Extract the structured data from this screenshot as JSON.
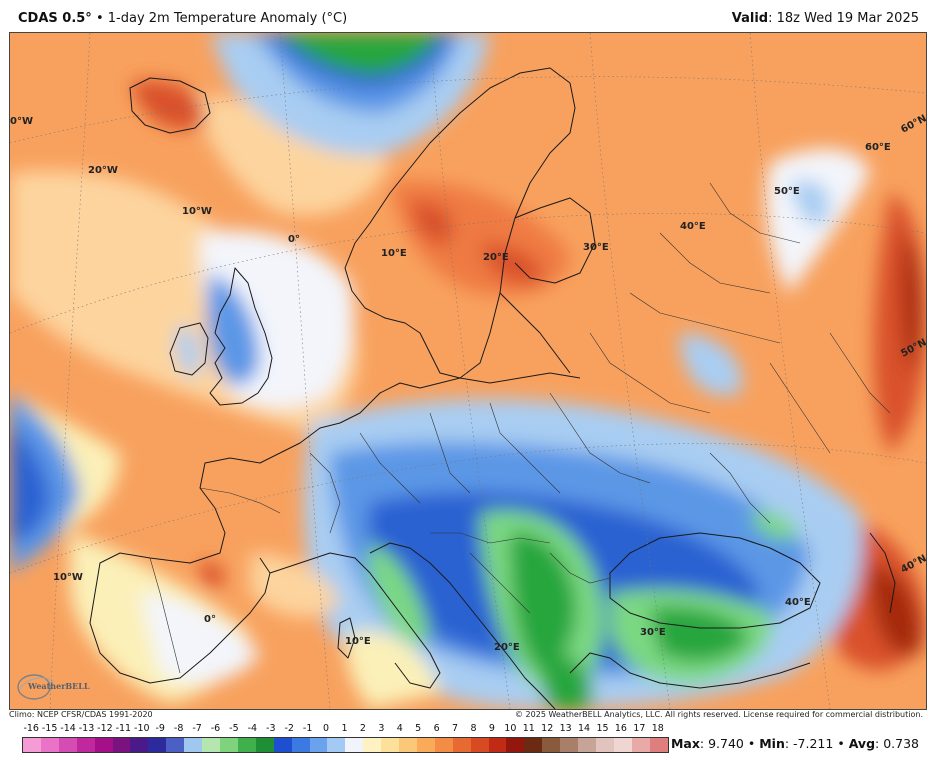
{
  "header": {
    "model": "CDAS 0.5°",
    "separator": "•",
    "product": "1-day 2m Temperature Anomaly (°C)",
    "valid_label": "Valid",
    "valid_value": ": 18z Wed 19 Mar 2025"
  },
  "map": {
    "labels": {
      "lon_0w_top": "0°W",
      "lon_20w": "20°W",
      "lon_10w_top": "10°W",
      "lon_0_top": "0°",
      "lon_10e_top": "10°E",
      "lon_20e_top": "20°E",
      "lon_30e_top": "30°E",
      "lon_40e_top": "40°E",
      "lon_50e": "50°E",
      "lat_60n": "60°E",
      "lat_60n_edge": "60°N",
      "lat_50n": "50°N",
      "lat_40n": "40°N",
      "lon_10w_bottom": "10°W",
      "lon_0_bottom": "0°",
      "lon_10e_bottom": "10°E",
      "lon_20e_bottom": "20°E",
      "lon_30e_bottom": "30°E",
      "lon_40e_bottom": "40°E"
    },
    "colors": {
      "warm_light": "#fdd49e",
      "warm": "#f8a15e",
      "warm_mid": "#ef7a43",
      "warm_strong": "#d9512a",
      "warm_dark": "#a52a10",
      "neutral": "#f3f5fb",
      "pale_yellow": "#fbf0b8",
      "cold_light": "#a9cdf2",
      "cold": "#5b97e6",
      "cold_mid": "#2c62d2",
      "cold_green_light": "#7cd883",
      "cold_green": "#27a63c",
      "ocean_blue": "#3a74d8"
    }
  },
  "logo_text": "WeatherBELL",
  "footer": {
    "climo": "Climo: NCEP CFSR/CDAS 1991-2020",
    "copyright": "© 2025 WeatherBELL Analytics, LLC. All rights reserved. License required for commercial distribution."
  },
  "colorbar": {
    "ticks": [
      "-16",
      "-15",
      "-14",
      "-13",
      "-12",
      "-11",
      "-10",
      "-9",
      "-8",
      "-7",
      "-6",
      "-5",
      "-4",
      "-3",
      "-2",
      "-1",
      "0",
      "1",
      "2",
      "3",
      "4",
      "5",
      "6",
      "7",
      "8",
      "9",
      "10",
      "11",
      "12",
      "13",
      "14",
      "15",
      "16",
      "17",
      "18"
    ],
    "colors": [
      "#f59cd6",
      "#e873c7",
      "#d54db3",
      "#c2289e",
      "#a50f8a",
      "#7a137f",
      "#4a1a8a",
      "#2c2a9c",
      "#4b5fc5",
      "#9fc7ef",
      "#b6e6b0",
      "#7fd37c",
      "#3fb04c",
      "#1f8f35",
      "#1d4fd0",
      "#3b7ae3",
      "#6aa2ee",
      "#a3c9f5",
      "#f2f4fb",
      "#fdf3c2",
      "#fde19b",
      "#fbc778",
      "#f9ab5a",
      "#f38c45",
      "#e86a33",
      "#d84a22",
      "#c12b15",
      "#93170c",
      "#6b2b12",
      "#8a5a3c",
      "#a8806a",
      "#c6a497",
      "#e2c3bd",
      "#f0d6d3",
      "#e9a9a7",
      "#df7f7d"
    ],
    "note": "36 color swatches between tick labels"
  },
  "stats": {
    "max_label": "Max",
    "max_value": ": 9.740",
    "min_label": "Min",
    "min_value": ": -7.211",
    "avg_label": "Avg",
    "avg_value": ": 0.738",
    "bullet": "•"
  }
}
